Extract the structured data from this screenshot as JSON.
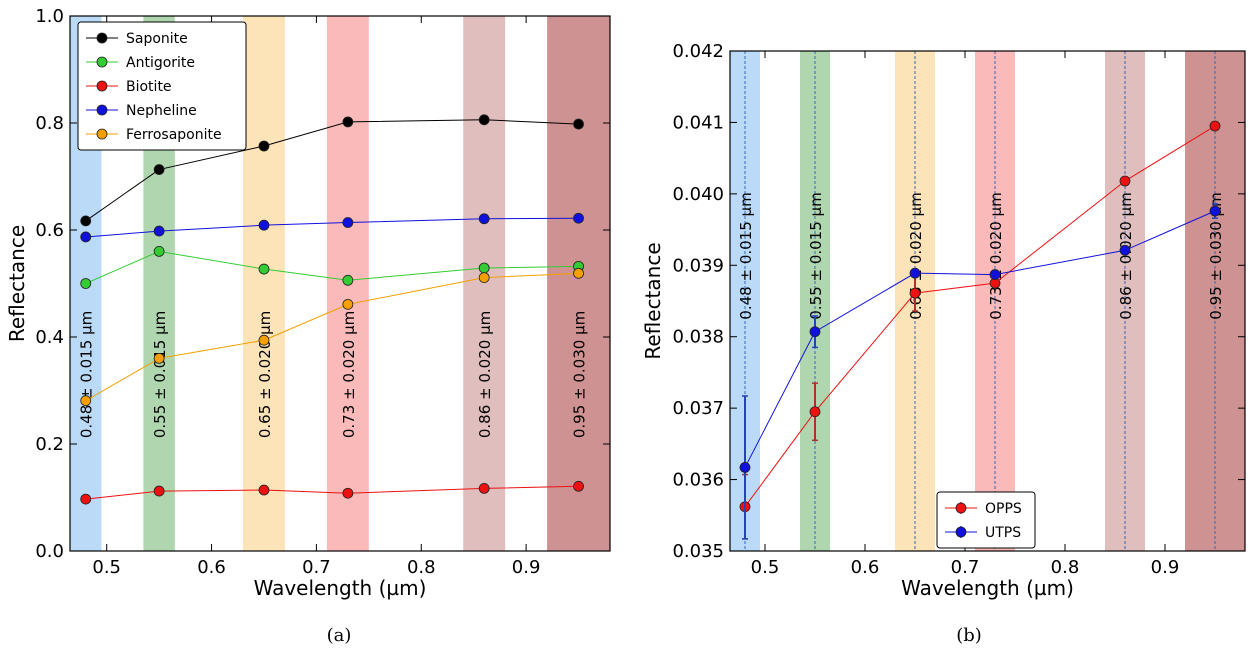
{
  "chart_data": [
    {
      "type": "line",
      "caption": "(a)",
      "xlabel": "Wavelength (µm)",
      "ylabel": "Reflectance",
      "xlim": [
        0.465,
        0.98
      ],
      "ylim": [
        0.0,
        1.0
      ],
      "xticks": [
        0.5,
        0.6,
        0.7,
        0.8,
        0.9
      ],
      "xtick_labels": [
        "0.5",
        "0.6",
        "0.7",
        "0.8",
        "0.9"
      ],
      "yticks": [
        0.0,
        0.2,
        0.4,
        0.6,
        0.8,
        1.0
      ],
      "ytick_labels": [
        "0.0",
        "0.2",
        "0.4",
        "0.6",
        "0.8",
        "1.0"
      ],
      "legend_position": "top-left",
      "bands": [
        {
          "center": 0.48,
          "half_width": 0.015,
          "color": "#9ecbf5",
          "label": "0.48 ± 0.015 µm"
        },
        {
          "center": 0.55,
          "half_width": 0.015,
          "color": "#8fc48f",
          "label": "0.55 ± 0.015 µm"
        },
        {
          "center": 0.65,
          "half_width": 0.02,
          "color": "#fbd79a",
          "label": "0.65 ± 0.020 µm"
        },
        {
          "center": 0.73,
          "half_width": 0.02,
          "color": "#f99c9c",
          "label": "0.73 ± 0.020 µm"
        },
        {
          "center": 0.86,
          "half_width": 0.02,
          "color": "#d4a2a2",
          "label": "0.86 ± 0.020 µm"
        },
        {
          "center": 0.95,
          "half_width": 0.03,
          "color": "#b96464",
          "label": "0.95 ± 0.030 µm"
        }
      ],
      "x": [
        0.48,
        0.55,
        0.65,
        0.73,
        0.86,
        0.95
      ],
      "series": [
        {
          "name": "Saponite",
          "color": "#000000",
          "values": [
            0.617,
            0.713,
            0.757,
            0.802,
            0.806,
            0.798
          ]
        },
        {
          "name": "Antigorite",
          "color": "#33cc33",
          "values": [
            0.5,
            0.56,
            0.527,
            0.506,
            0.529,
            0.532
          ]
        },
        {
          "name": "Biotite",
          "color": "#ee1111",
          "values": [
            0.097,
            0.112,
            0.114,
            0.108,
            0.117,
            0.121
          ]
        },
        {
          "name": "Nepheline",
          "color": "#1111dd",
          "values": [
            0.587,
            0.598,
            0.609,
            0.614,
            0.621,
            0.622
          ]
        },
        {
          "name": "Ferrosaponite",
          "color": "#f5a000",
          "values": [
            0.281,
            0.36,
            0.394,
            0.461,
            0.511,
            0.519
          ]
        }
      ]
    },
    {
      "type": "line",
      "caption": "(b)",
      "xlabel": "Wavelength (µm)",
      "ylabel": "Reflectance",
      "xlim": [
        0.465,
        0.98
      ],
      "ylim": [
        0.035,
        0.042
      ],
      "xticks": [
        0.5,
        0.6,
        0.7,
        0.8,
        0.9
      ],
      "xtick_labels": [
        "0.5",
        "0.6",
        "0.7",
        "0.8",
        "0.9"
      ],
      "yticks": [
        0.035,
        0.036,
        0.037,
        0.038,
        0.039,
        0.04,
        0.041,
        0.042
      ],
      "ytick_labels": [
        "0.035",
        "0.036",
        "0.037",
        "0.038",
        "0.039",
        "0.040",
        "0.041",
        "0.042"
      ],
      "legend_position": "bottom-center",
      "bands": [
        {
          "center": 0.48,
          "half_width": 0.015,
          "color": "#9ecbf5",
          "label": "0.48 ± 0.015 µm"
        },
        {
          "center": 0.55,
          "half_width": 0.015,
          "color": "#8fc48f",
          "label": "0.55 ± 0.015 µm"
        },
        {
          "center": 0.65,
          "half_width": 0.02,
          "color": "#fbd79a",
          "label": "0.65 ± 0.020 µm"
        },
        {
          "center": 0.73,
          "half_width": 0.02,
          "color": "#f99c9c",
          "label": "0.73 ± 0.020 µm"
        },
        {
          "center": 0.86,
          "half_width": 0.02,
          "color": "#d4a2a2",
          "label": "0.86 ± 0.020 µm"
        },
        {
          "center": 0.95,
          "half_width": 0.03,
          "color": "#b96464",
          "label": "0.95 ± 0.030 µm"
        }
      ],
      "x": [
        0.48,
        0.55,
        0.65,
        0.73,
        0.86,
        0.95
      ],
      "series": [
        {
          "name": "OPPS",
          "color": "#ee1111",
          "errbar_color": "#b03030",
          "values": [
            0.03562,
            0.03695,
            0.03861,
            0.03875,
            0.04018,
            0.04095
          ],
          "errors": [
            0.00045,
            0.0004,
            0.00025,
            5e-05,
            5e-05,
            5e-05
          ]
        },
        {
          "name": "UTPS",
          "color": "#1111dd",
          "errbar_color": "#2244bb",
          "values": [
            0.03617,
            0.03807,
            0.03889,
            0.03887,
            0.03921,
            0.03976
          ],
          "errors": [
            0.001,
            0.00022,
            5e-05,
            5e-05,
            5e-05,
            0.0001
          ]
        }
      ]
    }
  ]
}
